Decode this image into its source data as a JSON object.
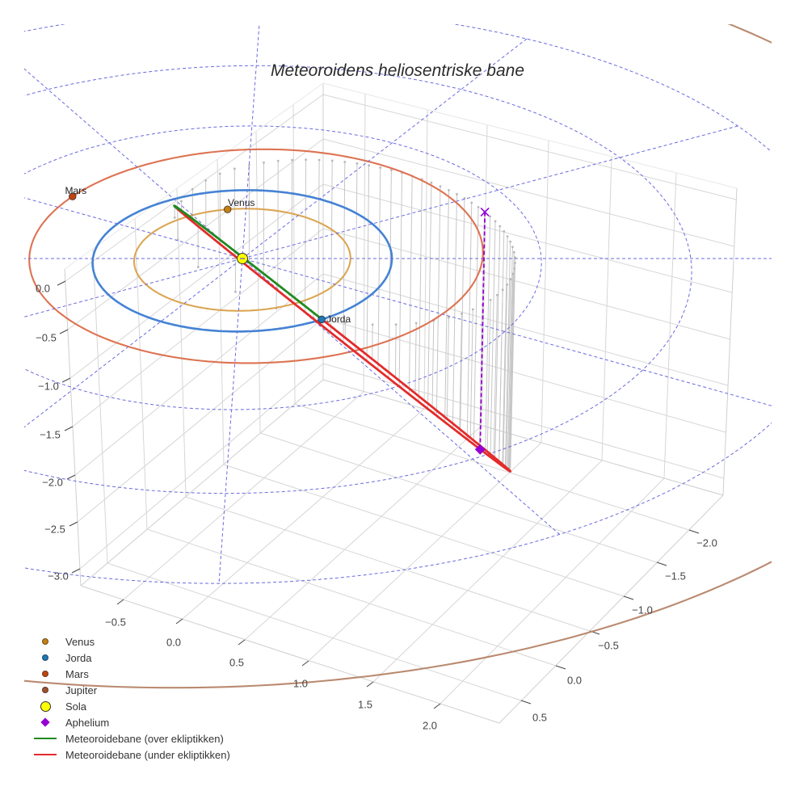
{
  "title": "Meteoroidens heliosentriske bane",
  "axes": {
    "x": {
      "ticks": [
        "−0.5",
        "0.0",
        "0.5",
        "1.0",
        "1.5",
        "2.0"
      ]
    },
    "y": {
      "ticks": [
        "0.5",
        "0.0",
        "−0.5",
        "−1.0",
        "−1.5",
        "−2.0"
      ]
    },
    "z": {
      "ticks": [
        "0.0",
        "−0.5",
        "−1.0",
        "−1.5",
        "−2.0",
        "−2.5",
        "−3.0"
      ]
    }
  },
  "plot_labels": {
    "venus": "Venus",
    "jorda": "Jorda",
    "mars": "Mars"
  },
  "legend": {
    "items": [
      {
        "label": "Venus",
        "symbol": "circle",
        "color": "#c57f12"
      },
      {
        "label": "Jorda",
        "symbol": "circle",
        "color": "#1f77b4"
      },
      {
        "label": "Mars",
        "symbol": "circle",
        "color": "#c1440e"
      },
      {
        "label": "Jupiter",
        "symbol": "circle",
        "color": "#a0522d"
      },
      {
        "label": "Sola",
        "symbol": "sun",
        "color": "#ffff00"
      },
      {
        "label": "Aphelium",
        "symbol": "diamond",
        "color": "#9400d3"
      },
      {
        "label": "Meteoroidebane (over ekliptikken)",
        "symbol": "line",
        "color": "#1f8a1f"
      },
      {
        "label": "Meteoroidebane (under ekliptikken)",
        "symbol": "line",
        "color": "#e42b2b"
      }
    ]
  },
  "chart_data": {
    "type": "scatter3d",
    "title": "Meteoroidens heliosentriske bane",
    "xlabel": "",
    "ylabel": "",
    "zlabel": "",
    "x_ticks": [
      -0.5,
      0,
      0.5,
      1,
      1.5,
      2
    ],
    "y_ticks": [
      0.5,
      0,
      -0.5,
      -1,
      -1.5,
      -2
    ],
    "z_ticks": [
      0,
      -0.5,
      -1,
      -1.5,
      -2,
      -2.5,
      -3
    ],
    "xlim": [
      -0.84,
      2.42
    ],
    "ylim": [
      -2.5,
      0.81
    ],
    "zlim": [
      -3.18,
      0.12
    ],
    "grid": true,
    "legend_position": "bottom-left",
    "ecliptic_grid": {
      "radii": [
        1,
        2,
        3,
        4
      ],
      "spoke_step_deg": 30,
      "color": "#6a6ae0",
      "style": "dashed"
    },
    "orbits": [
      {
        "name": "Venus",
        "a": 0.723,
        "e": 0.0,
        "perihelion_deg": 0,
        "color": "#dba654",
        "marker_color": "#c57f12",
        "marker_angle_deg": 230,
        "label": "Venus"
      },
      {
        "name": "Jorda",
        "a": 1.0,
        "e": 0.0,
        "perihelion_deg": 0,
        "color": "#3a8ad0",
        "marker_color": "#1f77b4",
        "marker_angle_deg": 27,
        "label": "Jorda"
      },
      {
        "name": "Mars",
        "a": 1.524,
        "e": 0.093,
        "perihelion_deg": 100,
        "color": "#dd7352",
        "marker_color": "#c1440e",
        "marker_angle_deg": 187,
        "label": "Mars"
      },
      {
        "name": "Jupiter",
        "a": 5.2,
        "e": 0.048,
        "perihelion_deg": 0,
        "color": "#ba8a70",
        "marker_color": "#a0522d",
        "marker_angle_deg": null,
        "label": ""
      }
    ],
    "sun": {
      "name": "Sola",
      "xyz": [
        0,
        0,
        0
      ],
      "color": "#ffff00"
    },
    "meteoroid": {
      "a": 1.804,
      "e": 0.698,
      "perihelion_au": 0.545,
      "aphelion_au": 3.063,
      "p_hat": [
        -0.351,
        0.458,
        0.816
      ],
      "q_hat": [
        -0.86,
        -0.504,
        -0.087
      ],
      "samples": 60,
      "color_above": "#1f8a1f",
      "color_below": "#e42b2b"
    },
    "aphelion": {
      "name": "Aphelium",
      "xyz": [
        1.08,
        -1.4,
        -2.5
      ],
      "ecliptic_projection": [
        1.08,
        -1.4,
        0
      ],
      "color": "#9400d3"
    }
  }
}
